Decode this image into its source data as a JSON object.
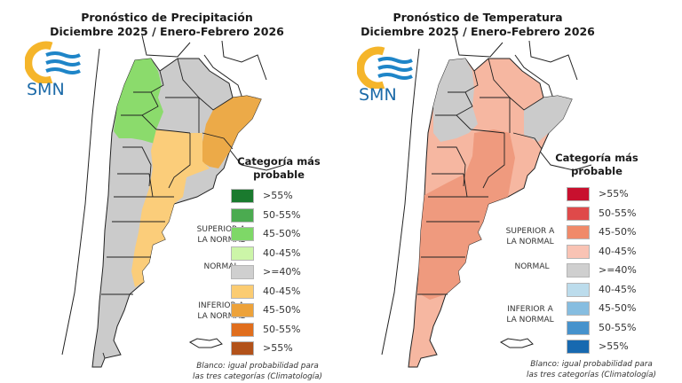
{
  "panels": [
    {
      "id": "precipitation",
      "title_line1": "Pronóstico de Precipitación",
      "title_line2": "Diciembre 2025 / Enero-Febrero 2026",
      "logo_text": "SMN",
      "logo_icon": "smn-sun-waves-icon",
      "legend_title_line1": "Categoría más",
      "legend_title_line2": "probable",
      "category_labels": {
        "superior_line1": "SUPERIOR A",
        "superior_line2": "LA NORMAL",
        "normal": "NORMAL",
        "inferior_line1": "INFERIOR A",
        "inferior_line2": "LA NORMAL"
      },
      "legend_items": [
        {
          "label": ">55%",
          "color": "#1a7a2e",
          "category": "superior"
        },
        {
          "label": "50-55%",
          "color": "#4bab50",
          "category": "superior"
        },
        {
          "label": "45-50%",
          "color": "#7ed867",
          "category": "superior"
        },
        {
          "label": "40-45%",
          "color": "#ccf5a8",
          "category": "superior"
        },
        {
          "label": ">=40%",
          "color": "#cfcfcf",
          "category": "normal"
        },
        {
          "label": "40-45%",
          "color": "#fbcc72",
          "category": "inferior"
        },
        {
          "label": "45-50%",
          "color": "#eda23a",
          "category": "inferior"
        },
        {
          "label": "50-55%",
          "color": "#e06e1d",
          "category": "inferior"
        },
        {
          "label": ">55%",
          "color": "#b2521a",
          "category": "inferior"
        }
      ],
      "note_line1": "Blanco: igual probabilidad para",
      "note_line2": "las tres categorías (Climatología)",
      "map_colors": {
        "north_west": "#8bdb6c",
        "north_east": "#ecaa48",
        "center_east": "#fbcd7a",
        "normal": "#cbcbcb"
      }
    },
    {
      "id": "temperature",
      "title_line1": "Pronóstico de Temperatura",
      "title_line2": "Diciembre 2025 / Enero-Febrero 2026",
      "logo_text": "SMN",
      "logo_icon": "smn-sun-waves-icon",
      "legend_title_line1": "Categoría más",
      "legend_title_line2": "probable",
      "category_labels": {
        "superior_line1": "SUPERIOR A",
        "superior_line2": "LA NORMAL",
        "normal": "NORMAL",
        "inferior_line1": "INFERIOR A",
        "inferior_line2": "LA NORMAL"
      },
      "legend_items": [
        {
          "label": ">55%",
          "color": "#c8102e",
          "category": "superior"
        },
        {
          "label": "50-55%",
          "color": "#df4a4a",
          "category": "superior"
        },
        {
          "label": "45-50%",
          "color": "#f08a6a",
          "category": "superior"
        },
        {
          "label": "40-45%",
          "color": "#f9c3b4",
          "category": "superior"
        },
        {
          "label": ">=40%",
          "color": "#cfcfcf",
          "category": "normal"
        },
        {
          "label": "40-45%",
          "color": "#bcdcec",
          "category": "inferior"
        },
        {
          "label": "45-50%",
          "color": "#86bde0",
          "category": "inferior"
        },
        {
          "label": "50-55%",
          "color": "#4692cc",
          "category": "inferior"
        },
        {
          "label": ">55%",
          "color": "#1769b0",
          "category": "inferior"
        }
      ],
      "note_line1": "Blanco: igual probabilidad para",
      "note_line2": "las tres categorías (Climatología)",
      "map_colors": {
        "warm_light": "#f6b7a1",
        "warm_mid": "#ef9a7e",
        "normal": "#cbcbcb"
      }
    }
  ]
}
